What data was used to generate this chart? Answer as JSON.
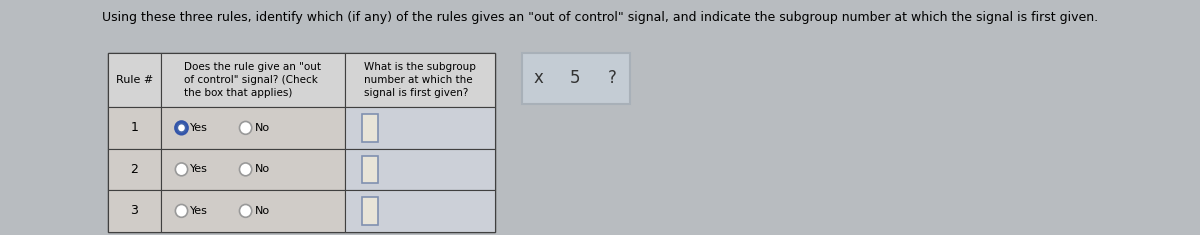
{
  "title": "Using these three rules, identify which (if any) of the rules gives an \"out of control\" signal, and indicate the subgroup number at which the signal is first given.",
  "title_fontsize": 9.0,
  "bg_color": "#b8bcc0",
  "table_outer_bg": "#c0c0c0",
  "header_bg": "#d4d4d4",
  "row_bg": "#d0ccc8",
  "subgroup_col_bg": "#ccd0d8",
  "col0_header": "Rule #",
  "col1_header_line1": "Does the rule give an \"out",
  "col1_header_line2": "of control\" signal? (Check",
  "col1_header_line3": "the box that applies)",
  "col2_header_line1": "What is the subgroup",
  "col2_header_line2": "number at which the",
  "col2_header_line3": "signal is first given?",
  "rows": [
    1,
    2,
    3
  ],
  "row1_yes_selected": true,
  "symbol_box_bg": "#c4ccd4",
  "symbol_box_border": "#a8b0b8",
  "symbols": [
    "x",
    "5",
    "?"
  ],
  "input_box_border": "#8090b0",
  "input_box_bg": "#e8e4d8",
  "radio_unselected_color": "#999999",
  "radio_selected_fill": "#4466aa",
  "radio_selected_border": "#3355aa"
}
